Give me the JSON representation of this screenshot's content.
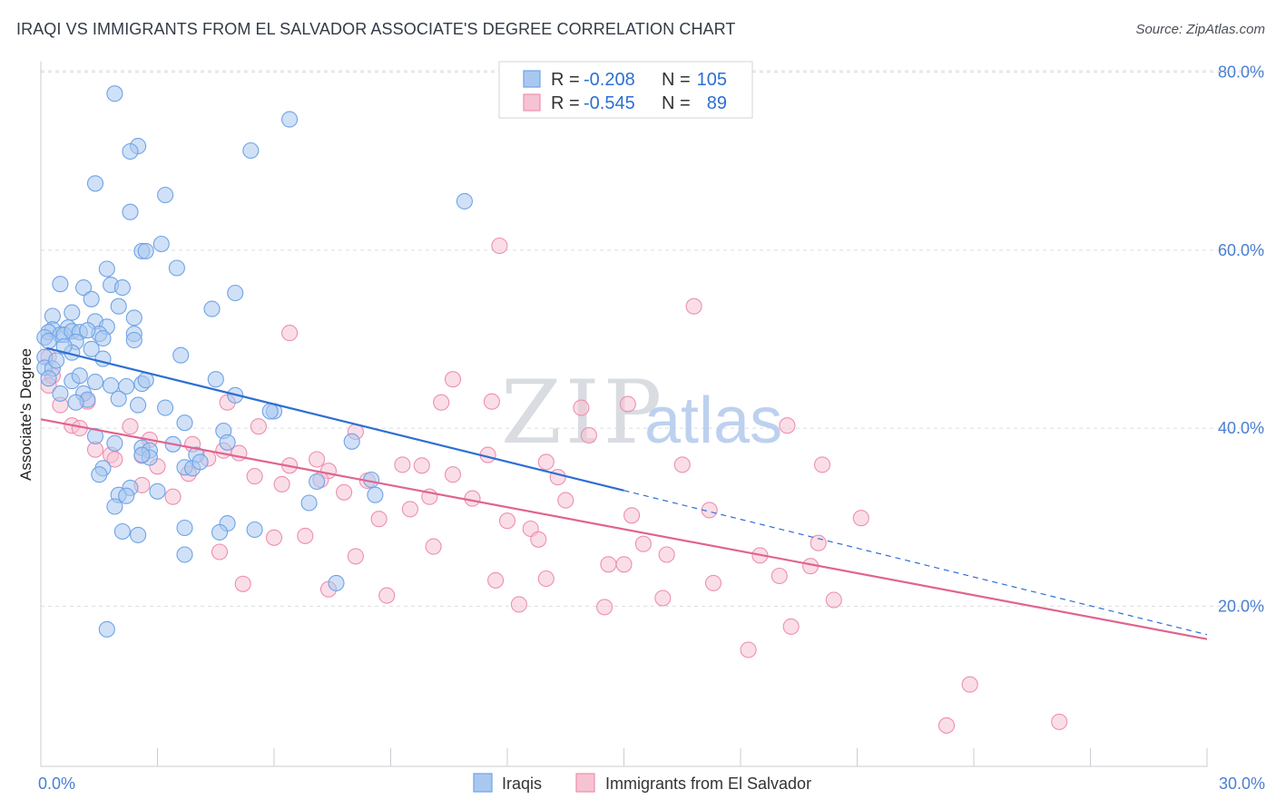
{
  "title": "IRAQI VS IMMIGRANTS FROM EL SALVADOR ASSOCIATE'S DEGREE CORRELATION CHART",
  "source": "Source: ZipAtlas.com",
  "watermark": {
    "zip": "ZIP",
    "atlas": "atlas"
  },
  "colors": {
    "blue": "#6fa3e6",
    "blue_fill": "#a9c8f0",
    "blue_line": "#2d6fd2",
    "pink": "#ee8fae",
    "pink_fill": "#f6c3d3",
    "pink_line": "#e0648f",
    "stat_value": "#2d6fd2",
    "axis_label": "#4a7fd1",
    "grid": "#d9dde3"
  },
  "stats": [
    {
      "series": "Iraqis",
      "r_label": "R =",
      "r_value": "-0.208",
      "n_label": "N =",
      "n_value": "105"
    },
    {
      "series": "Immigrants from El Salvador",
      "r_label": "R =",
      "r_value": "-0.545",
      "n_label": "N =",
      "n_value": "89"
    }
  ],
  "chart_data": {
    "type": "scatter",
    "title": "IRAQI VS IMMIGRANTS FROM EL SALVADOR ASSOCIATE'S DEGREE CORRELATION CHART",
    "xlabel": "",
    "ylabel": "Associate's Degree",
    "xlim": [
      0,
      30
    ],
    "ylim": [
      2,
      82
    ],
    "x_tick_labels": {
      "min": "0.0%",
      "max": "30.0%"
    },
    "y_ticks": [
      {
        "value": 20,
        "label": "20.0%"
      },
      {
        "value": 40,
        "label": "40.0%"
      },
      {
        "value": 60,
        "label": "60.0%"
      },
      {
        "value": 80,
        "label": "80.0%"
      }
    ],
    "legend_position": "bottom-center",
    "series": [
      {
        "name": "Iraqis",
        "color": "blue",
        "trend": {
          "x0": 0.15,
          "y0": 49.0,
          "x1": 15.0,
          "y1": 33.0,
          "dash_to_x": 30.0,
          "dash_to_y": 16.8
        },
        "points": [
          [
            1.9,
            77.6
          ],
          [
            6.4,
            74.7
          ],
          [
            2.5,
            71.7
          ],
          [
            2.3,
            71.1
          ],
          [
            5.4,
            71.2
          ],
          [
            1.4,
            67.5
          ],
          [
            2.3,
            64.3
          ],
          [
            3.2,
            66.2
          ],
          [
            10.9,
            65.5
          ],
          [
            3.1,
            60.7
          ],
          [
            2.6,
            59.9
          ],
          [
            2.7,
            59.9
          ],
          [
            3.5,
            58.0
          ],
          [
            1.7,
            57.9
          ],
          [
            0.5,
            56.2
          ],
          [
            1.1,
            55.8
          ],
          [
            1.8,
            56.1
          ],
          [
            2.1,
            55.8
          ],
          [
            5.0,
            55.2
          ],
          [
            1.3,
            54.5
          ],
          [
            2.0,
            53.7
          ],
          [
            4.4,
            53.4
          ],
          [
            0.3,
            52.6
          ],
          [
            0.8,
            53.0
          ],
          [
            1.4,
            52.0
          ],
          [
            1.7,
            51.4
          ],
          [
            2.4,
            52.4
          ],
          [
            0.7,
            51.3
          ],
          [
            0.3,
            51.1
          ],
          [
            0.2,
            50.8
          ],
          [
            0.5,
            50.5
          ],
          [
            0.1,
            50.2
          ],
          [
            0.2,
            49.8
          ],
          [
            0.6,
            50.5
          ],
          [
            0.8,
            50.9
          ],
          [
            1.0,
            50.8
          ],
          [
            1.5,
            50.6
          ],
          [
            1.6,
            50.1
          ],
          [
            2.4,
            50.6
          ],
          [
            2.4,
            49.9
          ],
          [
            0.9,
            49.7
          ],
          [
            1.3,
            48.9
          ],
          [
            0.8,
            48.5
          ],
          [
            1.6,
            47.8
          ],
          [
            3.6,
            48.2
          ],
          [
            0.1,
            48.0
          ],
          [
            0.1,
            46.8
          ],
          [
            0.3,
            46.7
          ],
          [
            0.2,
            45.6
          ],
          [
            0.8,
            45.3
          ],
          [
            1.0,
            45.9
          ],
          [
            1.4,
            45.2
          ],
          [
            2.2,
            44.7
          ],
          [
            2.6,
            45.0
          ],
          [
            2.7,
            45.4
          ],
          [
            4.5,
            45.5
          ],
          [
            1.8,
            44.8
          ],
          [
            1.1,
            43.9
          ],
          [
            0.5,
            43.9
          ],
          [
            1.2,
            43.2
          ],
          [
            2.0,
            43.3
          ],
          [
            2.5,
            42.6
          ],
          [
            5.0,
            43.7
          ],
          [
            6.0,
            41.9
          ],
          [
            0.9,
            42.9
          ],
          [
            3.7,
            40.6
          ],
          [
            4.7,
            39.7
          ],
          [
            8.0,
            38.5
          ],
          [
            1.4,
            39.1
          ],
          [
            1.9,
            38.3
          ],
          [
            4.8,
            38.4
          ],
          [
            3.4,
            38.2
          ],
          [
            2.6,
            37.8
          ],
          [
            2.8,
            37.5
          ],
          [
            4.0,
            37.0
          ],
          [
            2.8,
            36.7
          ],
          [
            1.6,
            35.5
          ],
          [
            3.7,
            35.6
          ],
          [
            3.9,
            35.5
          ],
          [
            1.5,
            34.8
          ],
          [
            8.5,
            34.2
          ],
          [
            7.1,
            34.0
          ],
          [
            2.3,
            33.3
          ],
          [
            3.0,
            32.9
          ],
          [
            2.0,
            32.5
          ],
          [
            2.2,
            32.4
          ],
          [
            8.6,
            32.5
          ],
          [
            6.9,
            31.6
          ],
          [
            4.8,
            29.3
          ],
          [
            3.7,
            28.8
          ],
          [
            5.5,
            28.6
          ],
          [
            2.1,
            28.4
          ],
          [
            4.6,
            28.3
          ],
          [
            2.5,
            28.0
          ],
          [
            3.7,
            25.8
          ],
          [
            7.6,
            22.6
          ],
          [
            1.7,
            17.4
          ],
          [
            2.6,
            37.0
          ],
          [
            4.1,
            36.2
          ],
          [
            0.6,
            49.2
          ],
          [
            1.2,
            51.0
          ],
          [
            0.4,
            47.6
          ],
          [
            3.2,
            42.3
          ],
          [
            5.9,
            41.9
          ],
          [
            1.9,
            31.2
          ]
        ]
      },
      {
        "name": "Immigrants from El Salvador",
        "color": "pink",
        "trend": {
          "x0": 0.0,
          "y0": 41.0,
          "x1": 30.0,
          "y1": 16.3
        },
        "points": [
          [
            0.2,
            48.0
          ],
          [
            0.3,
            45.9
          ],
          [
            0.2,
            44.8
          ],
          [
            0.5,
            42.6
          ],
          [
            1.2,
            43.0
          ],
          [
            0.8,
            40.3
          ],
          [
            1.0,
            40.0
          ],
          [
            2.3,
            40.2
          ],
          [
            2.8,
            38.7
          ],
          [
            3.0,
            35.7
          ],
          [
            1.4,
            37.6
          ],
          [
            1.8,
            37.0
          ],
          [
            1.9,
            36.5
          ],
          [
            2.6,
            36.9
          ],
          [
            3.9,
            38.2
          ],
          [
            4.3,
            36.6
          ],
          [
            3.8,
            34.9
          ],
          [
            4.7,
            37.5
          ],
          [
            4.8,
            42.9
          ],
          [
            5.1,
            37.2
          ],
          [
            5.6,
            40.2
          ],
          [
            6.4,
            35.8
          ],
          [
            7.1,
            36.5
          ],
          [
            7.4,
            35.2
          ],
          [
            6.2,
            33.7
          ],
          [
            7.2,
            34.2
          ],
          [
            5.5,
            34.6
          ],
          [
            2.6,
            33.6
          ],
          [
            3.4,
            32.3
          ],
          [
            8.1,
            39.6
          ],
          [
            8.4,
            34.1
          ],
          [
            9.3,
            35.9
          ],
          [
            9.5,
            30.9
          ],
          [
            9.8,
            35.8
          ],
          [
            10.0,
            32.3
          ],
          [
            7.8,
            32.8
          ],
          [
            8.7,
            29.8
          ],
          [
            10.6,
            34.8
          ],
          [
            11.1,
            32.1
          ],
          [
            11.6,
            43.0
          ],
          [
            11.5,
            37.0
          ],
          [
            10.3,
            42.9
          ],
          [
            10.6,
            45.5
          ],
          [
            12.0,
            29.6
          ],
          [
            12.6,
            28.7
          ],
          [
            12.8,
            27.5
          ],
          [
            13.0,
            23.1
          ],
          [
            13.0,
            36.2
          ],
          [
            13.3,
            34.5
          ],
          [
            13.5,
            31.9
          ],
          [
            14.1,
            39.2
          ],
          [
            13.9,
            42.3
          ],
          [
            15.1,
            42.7
          ],
          [
            14.6,
            24.7
          ],
          [
            15.0,
            24.7
          ],
          [
            15.2,
            30.2
          ],
          [
            15.5,
            27.0
          ],
          [
            16.1,
            25.8
          ],
          [
            16.0,
            20.9
          ],
          [
            16.5,
            35.9
          ],
          [
            16.8,
            53.7
          ],
          [
            17.2,
            30.8
          ],
          [
            17.3,
            22.6
          ],
          [
            18.2,
            15.1
          ],
          [
            18.5,
            25.7
          ],
          [
            19.0,
            23.4
          ],
          [
            19.3,
            17.7
          ],
          [
            19.2,
            40.3
          ],
          [
            20.0,
            27.1
          ],
          [
            19.8,
            24.5
          ],
          [
            20.4,
            20.7
          ],
          [
            20.1,
            35.9
          ],
          [
            21.1,
            29.9
          ],
          [
            23.3,
            6.6
          ],
          [
            23.9,
            11.2
          ],
          [
            26.2,
            7.0
          ],
          [
            11.8,
            60.5
          ],
          [
            6.4,
            50.7
          ],
          [
            8.1,
            25.6
          ],
          [
            8.9,
            21.2
          ],
          [
            7.4,
            21.9
          ],
          [
            5.2,
            22.5
          ],
          [
            6.0,
            27.7
          ],
          [
            10.1,
            26.7
          ],
          [
            4.6,
            26.1
          ],
          [
            6.8,
            27.9
          ],
          [
            12.3,
            20.2
          ],
          [
            14.5,
            19.9
          ],
          [
            11.7,
            22.9
          ]
        ]
      }
    ]
  },
  "legend": [
    {
      "label": "Iraqis",
      "color": "blue"
    },
    {
      "label": "Immigrants from El Salvador",
      "color": "pink"
    }
  ]
}
